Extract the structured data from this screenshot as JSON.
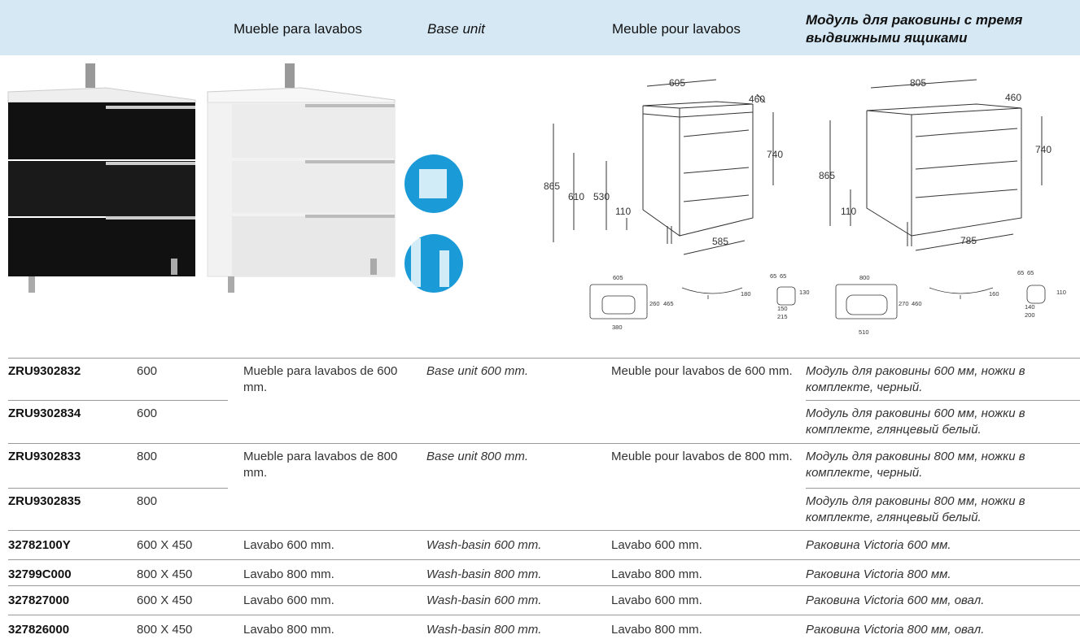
{
  "header": {
    "columns": [
      "Mueble para lavabos",
      "Base unit",
      "Meuble pour lavabos",
      "Модуль для раковины с тремя выдвижными ящиками"
    ]
  },
  "drawings": {
    "unit_600": [
      605,
      460,
      740,
      865,
      610,
      530,
      110,
      585
    ],
    "unit_800": [
      805,
      460,
      740,
      865,
      110,
      785
    ],
    "basin_600": [
      605,
      260,
      465,
      380,
      180,
      65,
      65,
      130,
      150,
      215
    ],
    "basin_800": [
      800,
      270,
      460,
      510,
      160,
      65,
      65,
      110,
      140,
      200
    ]
  },
  "table": {
    "rows": [
      {
        "code": "ZRU9302832",
        "size": "600",
        "es": "Mueble para lavabos de 600 mm.",
        "en": "Base unit 600 mm.",
        "fr": "Meuble pour lavabos de 600 mm.",
        "ru": "Модуль для раковины 600 мм, ножки в комплекте, черный."
      },
      {
        "code": "ZRU9302834",
        "size": "600",
        "ru": "Модуль для раковины 600 мм, ножки в комплекте, глянцевый белый."
      },
      {
        "code": "ZRU9302833",
        "size": "800",
        "es": "Mueble para lavabos de 800 mm.",
        "en": "Base unit 800 mm.",
        "fr": "Meuble pour lavabos de 800 mm.",
        "ru": "Модуль для раковины 800 мм, ножки в комплекте, черный."
      },
      {
        "code": "ZRU9302835",
        "size": "800",
        "ru": "Модуль для раковины 800 мм, ножки в комплекте, глянцевый белый."
      },
      {
        "code": "32782100Y",
        "size": "600 X 450",
        "es": "Lavabo 600 mm.",
        "en": "Wash-basin 600 mm.",
        "fr": "Lavabo 600 mm.",
        "ru": "Раковина Victoria 600 мм."
      },
      {
        "code": "32799C000",
        "size": "800 X 450",
        "es": "Lavabo 800 mm.",
        "en": "Wash-basin 800 mm.",
        "fr": "Lavabo 800 mm.",
        "ru": "Раковина Victoria 800 мм."
      },
      {
        "code": "327827000",
        "size": "600 X 450",
        "es": "Lavabo 600 mm.",
        "en": "Wash-basin 600 mm.",
        "fr": "Lavabo 600 mm.",
        "ru": "Раковина Victoria 600 мм, овал."
      },
      {
        "code": "327826000",
        "size": "800 X 450",
        "es": "Lavabo 800 mm.",
        "en": "Wash-basin 800 mm.",
        "fr": "Lavabo 800 mm.",
        "ru": "Раковина Victoria 800 мм, овал."
      }
    ]
  }
}
